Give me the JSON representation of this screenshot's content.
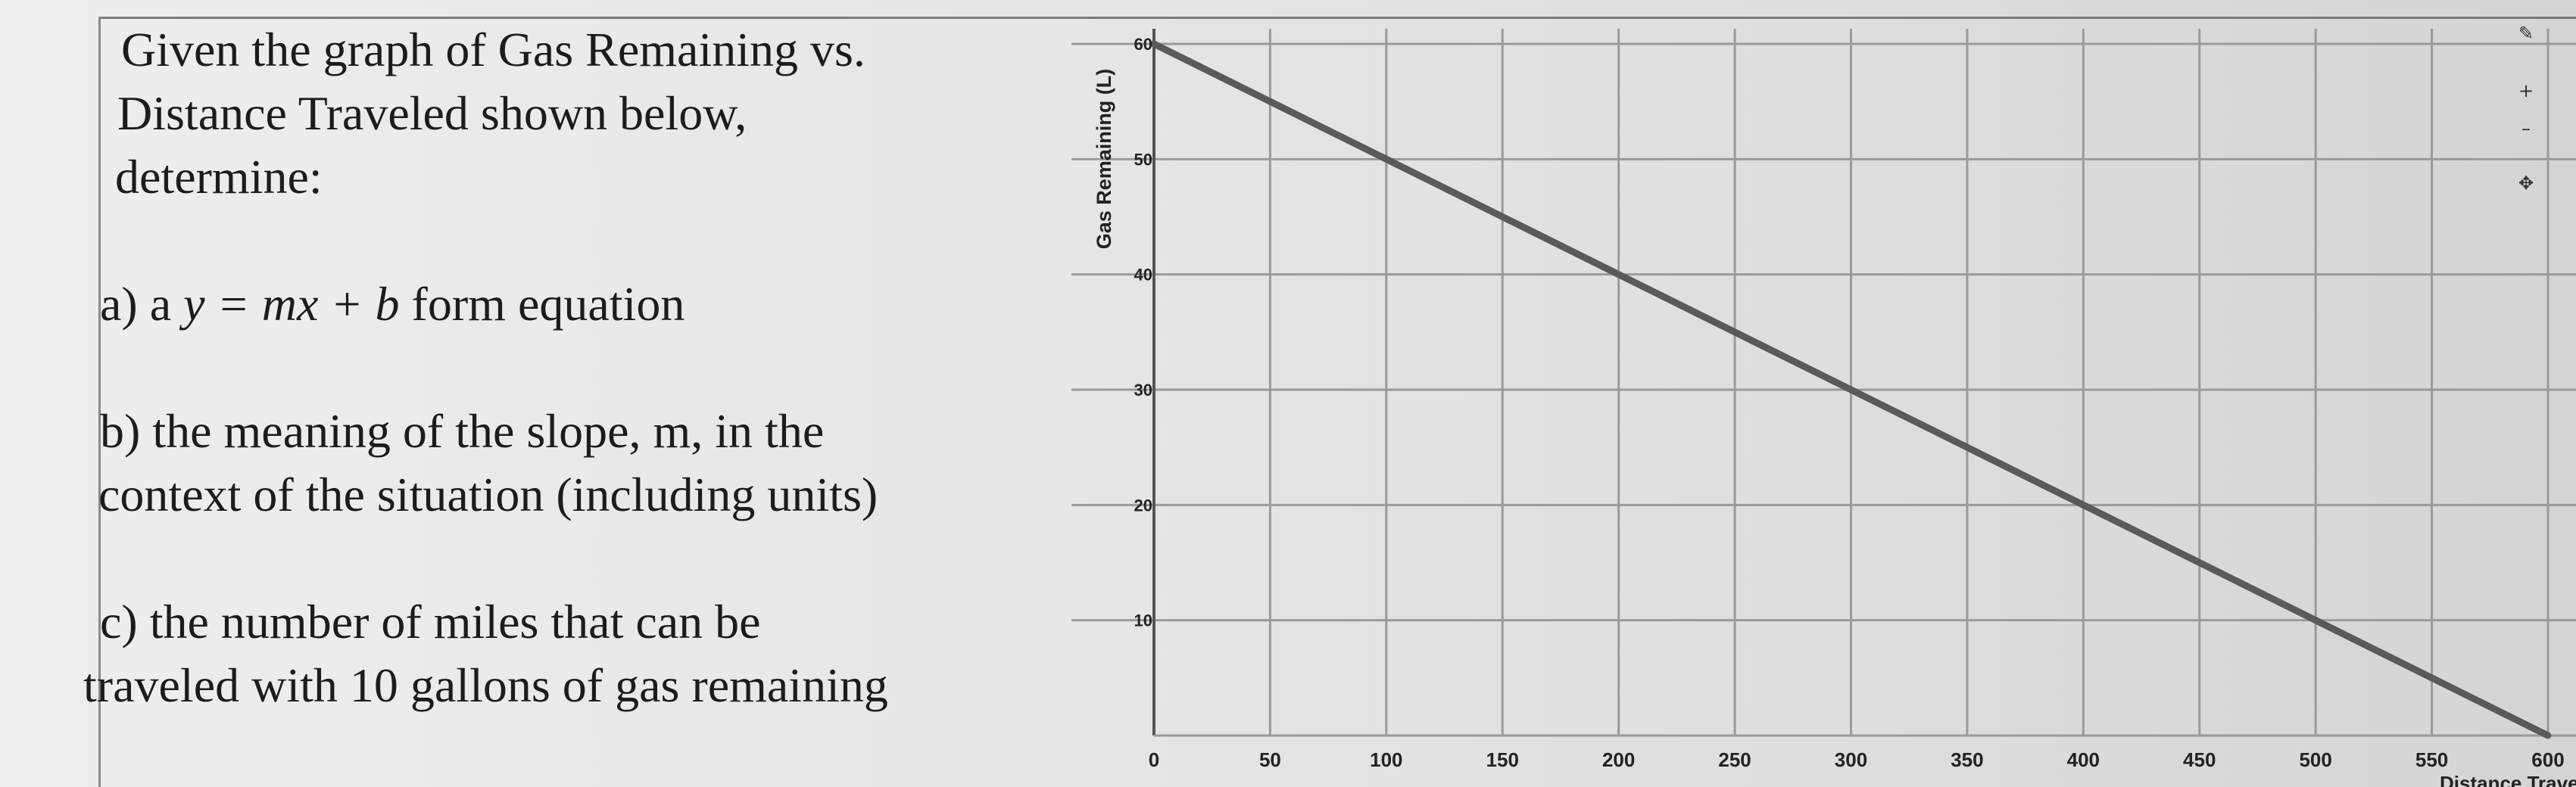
{
  "problem": {
    "intro_line1": "Given the graph of Gas Remaining vs.",
    "intro_line2": "Distance Traveled shown below,",
    "intro_line3": "determine:",
    "a_prefix": "a) a ",
    "a_equation": "y = mx + b",
    "a_suffix": " form equation",
    "b_line1": "b) the meaning of the slope, m, in the",
    "b_line2": "context of the situation (including units)",
    "c_line1": "c) the number of miles that can be",
    "c_line2": "traveled with 10 gallons of gas remaining"
  },
  "toolbar": {
    "pencil_icon": "pencil-icon",
    "zoom_in_icon": "plus-icon",
    "zoom_out_icon": "minus-icon",
    "pan_icon": "move-icon",
    "glyphs": [
      "✎",
      "+",
      "–",
      "✥"
    ]
  },
  "chart_data": {
    "type": "line",
    "xlabel": "Distance Traveled (km)",
    "ylabel": "Gas Remaining (L)",
    "xlim": [
      0,
      600
    ],
    "ylim": [
      0,
      60
    ],
    "x_ticks": [
      0,
      50,
      100,
      150,
      200,
      250,
      300,
      350,
      400,
      450,
      500,
      550,
      600
    ],
    "y_ticks": [
      10,
      20,
      30,
      40,
      50,
      60
    ],
    "grid": true,
    "series": [
      {
        "x": [
          0,
          100,
          200,
          300,
          400,
          500,
          600
        ],
        "y": [
          60,
          50,
          40,
          30,
          20,
          10,
          0
        ]
      }
    ],
    "line_color": "#5a5a5a",
    "grid_color": "#9a9a9a"
  }
}
